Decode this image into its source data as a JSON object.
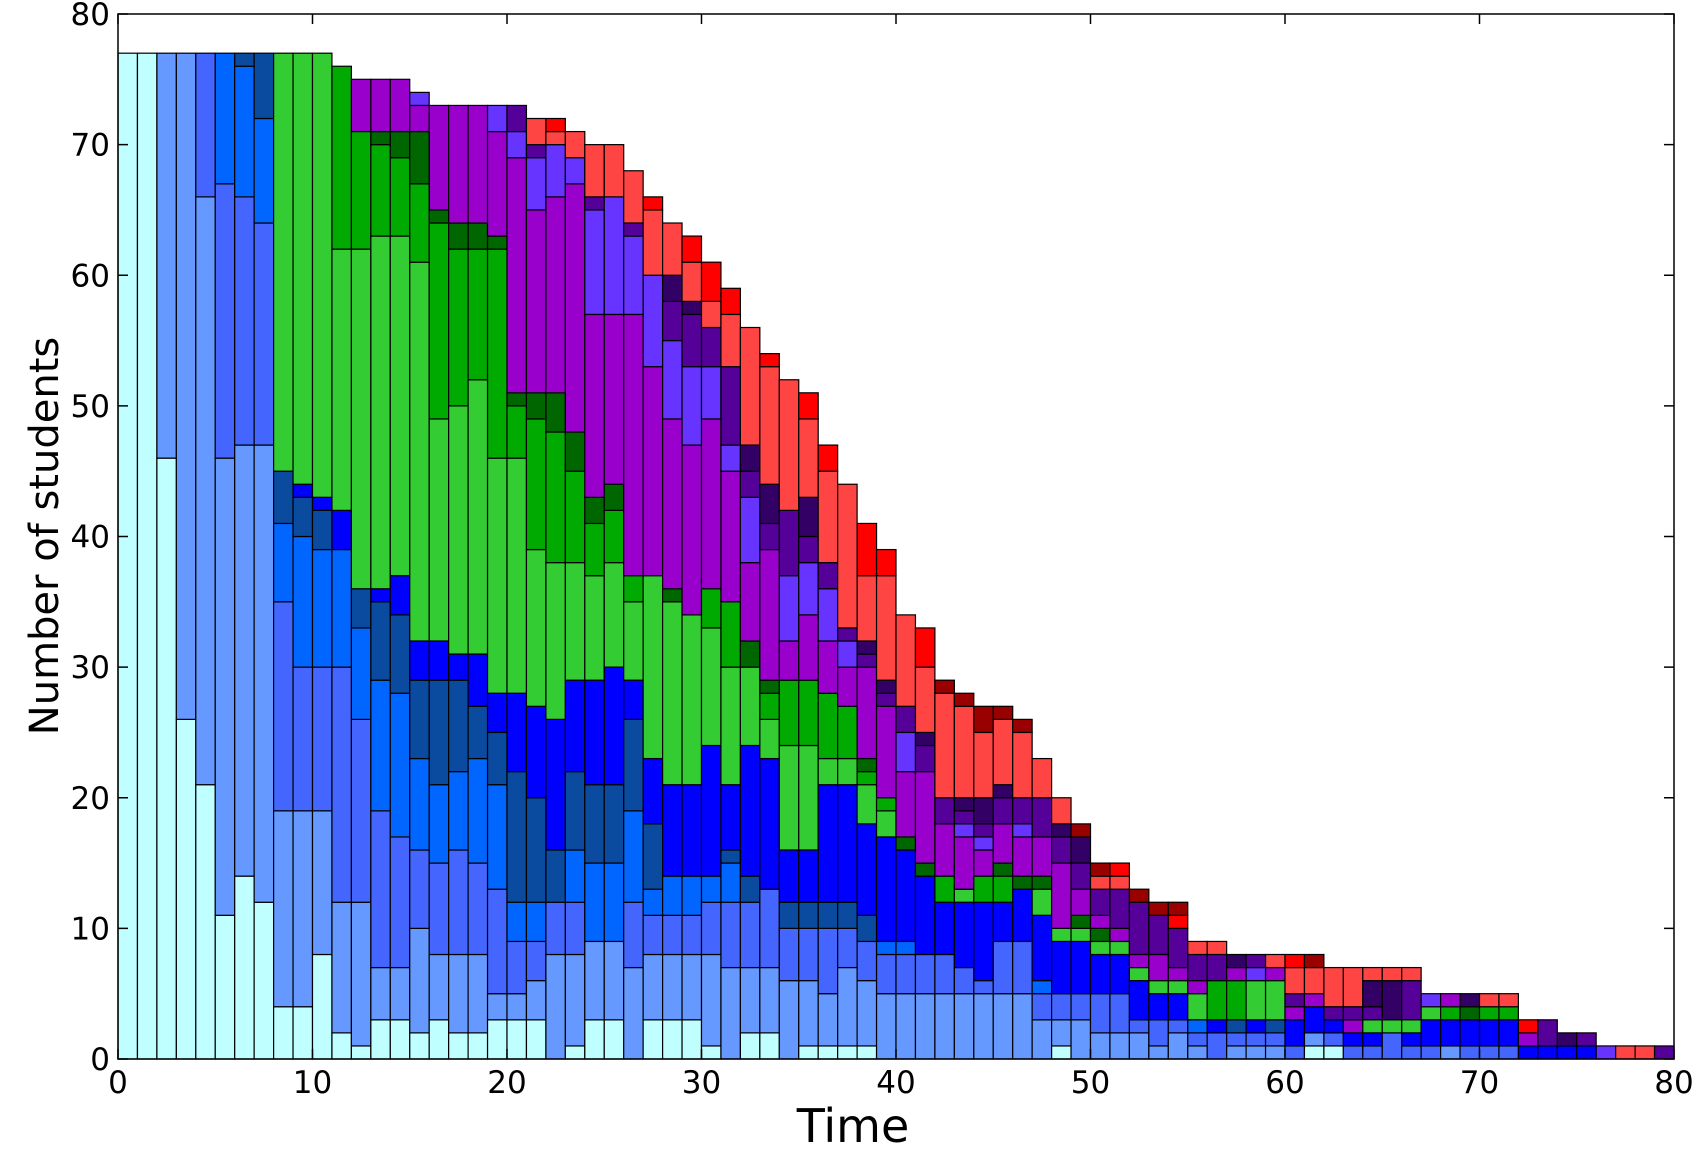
{
  "chart_data": {
    "type": "bar",
    "stacked": true,
    "xlabel": "Time",
    "ylabel": "Number of students",
    "x": [
      0,
      1,
      2,
      3,
      4,
      5,
      6,
      7,
      8,
      9,
      10,
      11,
      12,
      13,
      14,
      15,
      16,
      17,
      18,
      19,
      20,
      21,
      22,
      23,
      24,
      25,
      26,
      27,
      28,
      29,
      30,
      31,
      32,
      33,
      34,
      35,
      36,
      37,
      38,
      39,
      40,
      41,
      42,
      43,
      44,
      45,
      46,
      47,
      48,
      49,
      50,
      51,
      52,
      53,
      54,
      55,
      56,
      57,
      58,
      59,
      60,
      61,
      62,
      63,
      64,
      65,
      66,
      67,
      68,
      69,
      70,
      71,
      72,
      73,
      74,
      75,
      76,
      77,
      78,
      79
    ],
    "bar_width": 1,
    "xlim": [
      0,
      80
    ],
    "xticks": [
      0,
      10,
      20,
      30,
      40,
      50,
      60,
      70,
      80
    ],
    "ylim": [
      0,
      80
    ],
    "yticks": [
      0,
      10,
      20,
      30,
      40,
      50,
      60,
      70,
      80
    ],
    "series": [
      {
        "color": "#bfffff",
        "values": [
          77,
          77,
          46,
          26,
          21,
          11,
          14,
          12,
          4,
          4,
          8,
          2,
          1,
          3,
          3,
          2,
          3,
          2,
          2,
          3,
          3,
          3,
          0,
          1,
          3,
          3,
          0,
          3,
          3,
          3,
          1,
          0,
          2,
          2,
          0,
          1,
          1,
          1,
          1,
          0,
          0,
          0,
          0,
          0,
          0,
          0,
          0,
          0,
          1,
          0,
          0,
          0,
          0,
          0,
          0,
          0,
          0,
          0,
          0,
          0,
          0,
          1,
          1,
          0,
          0,
          0,
          0,
          0,
          0,
          0,
          0,
          0,
          0,
          0,
          0,
          0,
          0,
          0,
          0,
          0
        ]
      },
      {
        "color": "#6699ff",
        "values": [
          0,
          0,
          31,
          51,
          45,
          35,
          33,
          35,
          15,
          15,
          11,
          10,
          11,
          4,
          4,
          8,
          5,
          6,
          6,
          2,
          2,
          3,
          8,
          7,
          6,
          6,
          7,
          5,
          5,
          5,
          7,
          7,
          5,
          5,
          6,
          5,
          4,
          6,
          5,
          5,
          5,
          5,
          5,
          5,
          5,
          5,
          5,
          3,
          2,
          3,
          2,
          2,
          2,
          1,
          2,
          1,
          0,
          1,
          1,
          1,
          0,
          1,
          0,
          0,
          0,
          0,
          0,
          0,
          1,
          0,
          0,
          0,
          0,
          0,
          0,
          0,
          0,
          0,
          0,
          0
        ]
      },
      {
        "color": "#4466ff",
        "values": [
          0,
          0,
          0,
          0,
          11,
          21,
          19,
          17,
          16,
          11,
          11,
          18,
          14,
          12,
          10,
          6,
          7,
          8,
          7,
          8,
          4,
          3,
          4,
          4,
          0,
          0,
          5,
          3,
          3,
          3,
          4,
          5,
          5,
          6,
          4,
          4,
          5,
          3,
          3,
          3,
          3,
          3,
          3,
          2,
          1,
          4,
          4,
          2,
          2,
          2,
          3,
          3,
          1,
          2,
          1,
          1,
          2,
          1,
          1,
          1,
          1,
          0,
          1,
          1,
          1,
          2,
          1,
          1,
          0,
          1,
          1,
          1,
          0,
          0,
          0,
          0,
          0,
          0,
          0,
          0
        ]
      },
      {
        "color": "#0066ff",
        "values": [
          0,
          0,
          0,
          0,
          0,
          10,
          10,
          8,
          6,
          10,
          9,
          9,
          7,
          10,
          11,
          7,
          6,
          6,
          8,
          8,
          3,
          3,
          0,
          4,
          6,
          6,
          7,
          2,
          3,
          3,
          2,
          3,
          0,
          0,
          0,
          0,
          0,
          0,
          0,
          1,
          1,
          0,
          0,
          0,
          0,
          0,
          0,
          1,
          0,
          0,
          0,
          0,
          0,
          0,
          0,
          1,
          0,
          0,
          0,
          0,
          0,
          0,
          0,
          0,
          0,
          0,
          0,
          0,
          0,
          0,
          0,
          0,
          0,
          0,
          0,
          0,
          0,
          0,
          0,
          0
        ]
      },
      {
        "color": "#0a4a9f",
        "values": [
          0,
          0,
          0,
          0,
          0,
          0,
          1,
          5,
          4,
          3,
          3,
          0,
          3,
          6,
          6,
          6,
          8,
          7,
          4,
          4,
          10,
          8,
          4,
          6,
          6,
          6,
          7,
          5,
          0,
          0,
          0,
          1,
          2,
          0,
          2,
          2,
          2,
          2,
          2,
          0,
          0,
          0,
          0,
          0,
          0,
          0,
          0,
          0,
          0,
          0,
          0,
          0,
          0,
          0,
          0,
          0,
          0,
          1,
          0,
          1,
          0,
          0,
          0,
          0,
          0,
          0,
          0,
          0,
          0,
          0,
          0,
          0,
          0,
          0,
          0,
          0,
          0,
          0,
          0,
          0
        ]
      },
      {
        "color": "#0000ff",
        "values": [
          0,
          0,
          0,
          0,
          0,
          0,
          0,
          0,
          0,
          1,
          1,
          3,
          0,
          1,
          3,
          3,
          3,
          2,
          4,
          3,
          6,
          7,
          10,
          7,
          8,
          9,
          3,
          5,
          7,
          7,
          10,
          5,
          10,
          10,
          4,
          4,
          9,
          9,
          7,
          8,
          7,
          6,
          4,
          5,
          6,
          3,
          4,
          5,
          4,
          4,
          3,
          3,
          3,
          2,
          2,
          0,
          1,
          0,
          1,
          0,
          2,
          2,
          1,
          1,
          1,
          0,
          1,
          2,
          2,
          2,
          2,
          2,
          1,
          1,
          1,
          1,
          0,
          0,
          0,
          0
        ]
      },
      {
        "color": "#33cc33",
        "values": [
          0,
          0,
          0,
          0,
          0,
          0,
          0,
          0,
          32,
          33,
          34,
          20,
          26,
          27,
          26,
          29,
          17,
          19,
          21,
          18,
          18,
          12,
          12,
          9,
          8,
          8,
          6,
          14,
          14,
          13,
          9,
          9,
          6,
          3,
          8,
          8,
          2,
          2,
          3,
          2,
          0,
          0,
          0,
          1,
          0,
          0,
          0,
          2,
          1,
          1,
          1,
          1,
          1,
          1,
          1,
          2,
          0,
          0,
          3,
          3,
          0,
          0,
          0,
          0,
          1,
          1,
          1,
          1,
          0,
          0,
          0,
          0,
          0,
          0,
          0,
          0,
          0,
          0,
          0,
          0
        ]
      },
      {
        "color": "#00aa00",
        "values": [
          0,
          0,
          0,
          0,
          0,
          0,
          0,
          0,
          0,
          0,
          0,
          14,
          9,
          7,
          6,
          6,
          15,
          12,
          10,
          16,
          4,
          10,
          10,
          7,
          4,
          4,
          2,
          0,
          0,
          0,
          3,
          5,
          0,
          2,
          5,
          5,
          5,
          4,
          1,
          1,
          0,
          0,
          2,
          0,
          2,
          2,
          0,
          0,
          0,
          0,
          0,
          0,
          0,
          0,
          0,
          0,
          3,
          3,
          0,
          0,
          0,
          0,
          0,
          0,
          0,
          0,
          0,
          0,
          1,
          0,
          1,
          1,
          0,
          0,
          0,
          0,
          0,
          0,
          0,
          0
        ]
      },
      {
        "color": "#006600",
        "values": [
          0,
          0,
          0,
          0,
          0,
          0,
          0,
          0,
          0,
          0,
          0,
          0,
          0,
          1,
          2,
          4,
          1,
          2,
          2,
          1,
          1,
          2,
          3,
          3,
          2,
          2,
          0,
          0,
          1,
          0,
          0,
          0,
          2,
          1,
          0,
          0,
          0,
          0,
          1,
          0,
          1,
          1,
          0,
          0,
          0,
          1,
          1,
          1,
          0,
          1,
          1,
          0,
          0,
          0,
          0,
          0,
          0,
          0,
          0,
          0,
          0,
          0,
          0,
          0,
          0,
          0,
          0,
          0,
          0,
          1,
          0,
          0,
          0,
          0,
          0,
          0,
          0,
          0,
          0,
          0
        ]
      },
      {
        "color": "#9900cc",
        "values": [
          0,
          0,
          0,
          0,
          0,
          0,
          0,
          0,
          0,
          0,
          0,
          0,
          4,
          4,
          4,
          2,
          8,
          9,
          9,
          8,
          18,
          14,
          15,
          19,
          14,
          13,
          20,
          16,
          13,
          13,
          13,
          10,
          6,
          10,
          3,
          5,
          4,
          3,
          7,
          7,
          5,
          7,
          4,
          4,
          2,
          3,
          3,
          3,
          5,
          2,
          1,
          1,
          1,
          2,
          1,
          1,
          0,
          1,
          0,
          1,
          1,
          1,
          0,
          1,
          0,
          0,
          0,
          0,
          1,
          0,
          0,
          0,
          1,
          0,
          0,
          0,
          0,
          0,
          0,
          0
        ]
      },
      {
        "color": "#6633ff",
        "values": [
          0,
          0,
          0,
          0,
          0,
          0,
          0,
          0,
          0,
          0,
          0,
          0,
          0,
          0,
          0,
          1,
          0,
          0,
          0,
          2,
          2,
          4,
          4,
          2,
          8,
          9,
          6,
          7,
          6,
          6,
          4,
          2,
          5,
          0,
          5,
          4,
          4,
          2,
          0,
          0,
          3,
          0,
          0,
          1,
          1,
          0,
          1,
          0,
          0,
          0,
          0,
          0,
          0,
          0,
          0,
          0,
          0,
          0,
          1,
          0,
          0,
          0,
          0,
          0,
          0,
          0,
          0,
          1,
          0,
          0,
          0,
          0,
          0,
          0,
          0,
          0,
          1,
          0,
          0,
          0
        ]
      },
      {
        "color": "#550099",
        "values": [
          0,
          0,
          0,
          0,
          0,
          0,
          0,
          0,
          0,
          0,
          0,
          0,
          0,
          0,
          0,
          0,
          0,
          0,
          0,
          0,
          2,
          1,
          0,
          0,
          1,
          0,
          1,
          0,
          3,
          4,
          3,
          6,
          2,
          2,
          5,
          2,
          2,
          1,
          1,
          1,
          2,
          2,
          2,
          1,
          1,
          2,
          2,
          3,
          2,
          2,
          2,
          3,
          4,
          3,
          3,
          2,
          2,
          0,
          1,
          0,
          1,
          0,
          1,
          1,
          1,
          0,
          3,
          0,
          0,
          0,
          0,
          0,
          0,
          2,
          0,
          1,
          0,
          0,
          0,
          1
        ]
      },
      {
        "color": "#330066",
        "values": [
          0,
          0,
          0,
          0,
          0,
          0,
          0,
          0,
          0,
          0,
          0,
          0,
          0,
          0,
          0,
          0,
          0,
          0,
          0,
          0,
          0,
          0,
          0,
          0,
          0,
          0,
          0,
          0,
          2,
          1,
          0,
          0,
          2,
          3,
          0,
          3,
          0,
          0,
          1,
          1,
          0,
          1,
          0,
          1,
          2,
          1,
          0,
          0,
          1,
          2,
          0,
          0,
          0,
          0,
          0,
          0,
          0,
          1,
          0,
          0,
          0,
          0,
          0,
          0,
          2,
          3,
          0,
          0,
          0,
          1,
          0,
          0,
          0,
          0,
          1,
          0,
          0,
          0,
          0,
          0
        ]
      },
      {
        "color": "#ff4444",
        "values": [
          0,
          0,
          0,
          0,
          0,
          0,
          0,
          0,
          0,
          0,
          0,
          0,
          0,
          0,
          0,
          0,
          0,
          0,
          0,
          0,
          0,
          2,
          1,
          2,
          4,
          4,
          4,
          5,
          4,
          3,
          2,
          4,
          9,
          9,
          10,
          6,
          7,
          11,
          5,
          8,
          7,
          5,
          8,
          7,
          5,
          5,
          5,
          3,
          2,
          0,
          1,
          1,
          0,
          0,
          0,
          1,
          1,
          0,
          0,
          1,
          2,
          2,
          3,
          3,
          1,
          1,
          1,
          0,
          0,
          0,
          1,
          1,
          0,
          0,
          0,
          0,
          0,
          1,
          1,
          0
        ]
      },
      {
        "color": "#ff0000",
        "values": [
          0,
          0,
          0,
          0,
          0,
          0,
          0,
          0,
          0,
          0,
          0,
          0,
          0,
          0,
          0,
          0,
          0,
          0,
          0,
          0,
          0,
          0,
          1,
          0,
          0,
          0,
          0,
          1,
          0,
          2,
          3,
          2,
          0,
          1,
          0,
          2,
          2,
          0,
          4,
          2,
          0,
          3,
          0,
          0,
          0,
          0,
          0,
          0,
          0,
          0,
          0,
          1,
          0,
          0,
          1,
          0,
          0,
          0,
          0,
          0,
          1,
          0,
          0,
          0,
          0,
          0,
          0,
          0,
          0,
          0,
          0,
          0,
          1,
          0,
          0,
          0,
          0,
          0,
          0,
          0
        ]
      },
      {
        "color": "#990000",
        "values": [
          0,
          0,
          0,
          0,
          0,
          0,
          0,
          0,
          0,
          0,
          0,
          0,
          0,
          0,
          0,
          0,
          0,
          0,
          0,
          0,
          0,
          0,
          0,
          0,
          0,
          0,
          0,
          0,
          0,
          0,
          0,
          0,
          0,
          0,
          0,
          0,
          0,
          0,
          0,
          0,
          0,
          0,
          1,
          1,
          2,
          1,
          1,
          0,
          0,
          1,
          1,
          0,
          1,
          1,
          1,
          0,
          0,
          0,
          0,
          0,
          0,
          1,
          0,
          0,
          0,
          0,
          0,
          0,
          0,
          0,
          0,
          0,
          0,
          0,
          0,
          0,
          0,
          0,
          0,
          0
        ]
      }
    ]
  }
}
